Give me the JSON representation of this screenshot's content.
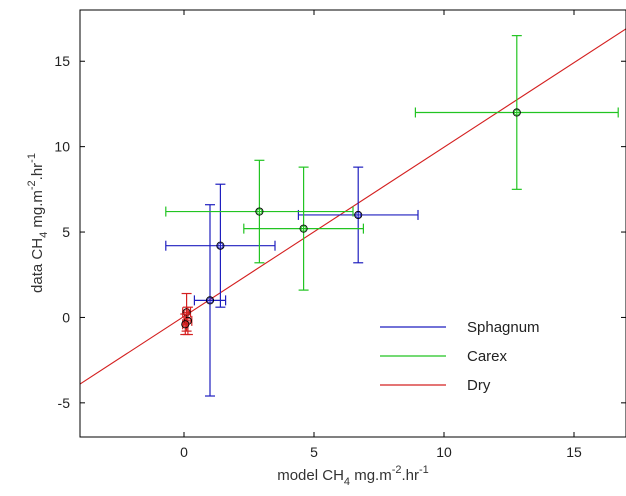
{
  "chart_data": {
    "type": "scatter",
    "xlabel": {
      "prefix": "model CH",
      "sub": "4",
      "mid": " mg.m",
      "sup1": "-2",
      "mid2": ".hr",
      "sup2": "-1"
    },
    "ylabel": {
      "prefix": "data CH",
      "sub": "4",
      "mid": " mg.m",
      "sup1": "-2",
      "mid2": ".hr",
      "sup2": "-1"
    },
    "xlim": [
      -4,
      17
    ],
    "ylim": [
      -7,
      18
    ],
    "xticks": [
      0,
      5,
      10,
      15
    ],
    "yticks": [
      -5,
      0,
      5,
      10,
      15
    ],
    "grid": false,
    "legend_position": "lower-right",
    "colors": {
      "Sphagnum": "#1f1fbf",
      "Carex": "#22c422",
      "Dry": "#d42020",
      "axes": "#000000"
    },
    "legend": [
      "Sphagnum",
      "Carex",
      "Dry"
    ],
    "series": [
      {
        "name": "Sphagnum",
        "points": [
          {
            "x": 1.0,
            "y": 1.0,
            "xerr": 0.6,
            "yerr": 5.6
          },
          {
            "x": 1.4,
            "y": 4.2,
            "xerr": 2.1,
            "yerr": 3.6
          },
          {
            "x": 6.7,
            "y": 6.0,
            "xerr": 2.3,
            "yerr": 2.8
          }
        ]
      },
      {
        "name": "Carex",
        "points": [
          {
            "x": 2.9,
            "y": 6.2,
            "xerr": 3.6,
            "yerr": 3.0
          },
          {
            "x": 4.6,
            "y": 5.2,
            "xerr": 2.3,
            "yerr": 3.6
          },
          {
            "x": 12.8,
            "y": 12.0,
            "xerr": 3.9,
            "yerr": 4.5
          }
        ]
      },
      {
        "name": "Dry",
        "points": [
          {
            "x": 0.1,
            "y": 0.3,
            "xerr": 0.15,
            "yerr": 1.1
          },
          {
            "x": 0.15,
            "y": -0.2,
            "xerr": 0.15,
            "yerr": 0.8
          },
          {
            "x": 0.05,
            "y": -0.4,
            "xerr": 0.1,
            "yerr": 0.6
          }
        ]
      }
    ],
    "fit_line": {
      "x": [
        -4,
        17
      ],
      "y": [
        -3.9,
        16.9
      ]
    }
  }
}
